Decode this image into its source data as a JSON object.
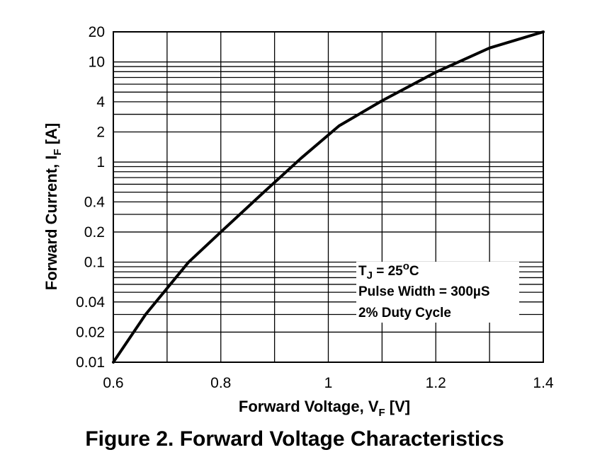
{
  "chart_data": {
    "type": "line",
    "title": "",
    "caption": "Figure 2. Forward Voltage Characteristics",
    "xlabel": {
      "main": "Forward Voltage, V",
      "sub": "F",
      "unit": " [V]"
    },
    "ylabel": {
      "main": "Forward Current, I",
      "sub": "F",
      "unit": " [A]"
    },
    "xlim": [
      0.6,
      1.4
    ],
    "ylim": [
      0.01,
      20
    ],
    "yscale": "log",
    "grid": true,
    "x_ticks": [
      {
        "value": 0.6,
        "label": "0.6"
      },
      {
        "value": 0.8,
        "label": "0.8"
      },
      {
        "value": 1.0,
        "label": "1"
      },
      {
        "value": 1.2,
        "label": "1.2"
      },
      {
        "value": 1.4,
        "label": "1.4"
      }
    ],
    "y_ticks": [
      {
        "value": 0.01,
        "label": "0.01"
      },
      {
        "value": 0.02,
        "label": "0.02"
      },
      {
        "value": 0.04,
        "label": "0.04"
      },
      {
        "value": 0.1,
        "label": "0.1"
      },
      {
        "value": 0.2,
        "label": "0.2"
      },
      {
        "value": 0.4,
        "label": "0.4"
      },
      {
        "value": 1,
        "label": "1"
      },
      {
        "value": 2,
        "label": "2"
      },
      {
        "value": 4,
        "label": "4"
      },
      {
        "value": 10,
        "label": "10"
      },
      {
        "value": 20,
        "label": "20"
      }
    ],
    "series": [
      {
        "x": [
          0.6,
          0.66,
          0.74,
          0.8,
          0.88,
          0.95,
          1.02,
          1.1,
          1.2,
          1.3,
          1.4
        ],
        "y": [
          0.01,
          0.03,
          0.1,
          0.2,
          0.5,
          1.1,
          2.3,
          4.1,
          7.9,
          13.8,
          20
        ]
      }
    ],
    "annotation": {
      "line1_prefix": "T",
      "line1_sub": "J",
      "line1_mid": " = 25",
      "line1_sup": "o",
      "line1_suffix": "C",
      "line2": "Pulse Width = 300µS",
      "line3": "2% Duty Cycle"
    }
  }
}
